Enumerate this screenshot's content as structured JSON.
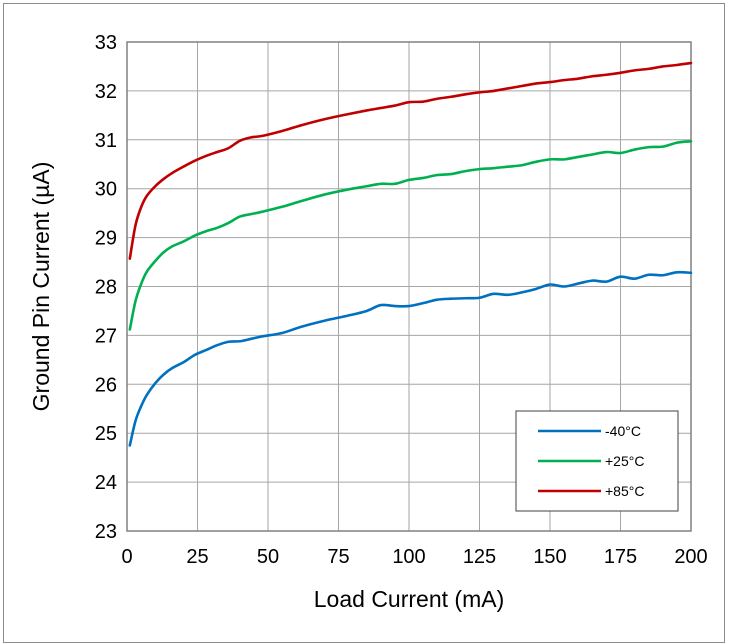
{
  "chart_data": {
    "type": "line",
    "title": "",
    "xlabel": "Load Current (mA)",
    "ylabel": "Ground Pin Current (µA)",
    "xlim": [
      0,
      200
    ],
    "ylim": [
      23,
      33
    ],
    "xticks": [
      0,
      25,
      50,
      75,
      100,
      125,
      150,
      175,
      200
    ],
    "yticks": [
      23,
      24,
      25,
      26,
      27,
      28,
      29,
      30,
      31,
      32,
      33
    ],
    "grid": true,
    "legend_position": "bottom-right",
    "series": [
      {
        "name": "-40°C",
        "color": "#0070c0",
        "x": [
          1,
          3,
          5,
          7,
          10,
          13,
          16,
          20,
          24,
          28,
          32,
          36,
          40,
          44,
          48,
          55,
          62,
          70,
          78,
          85,
          90,
          95,
          100,
          105,
          110,
          115,
          120,
          125,
          130,
          135,
          140,
          145,
          150,
          155,
          160,
          165,
          170,
          175,
          180,
          185,
          190,
          195,
          200
        ],
        "values": [
          24.75,
          25.25,
          25.55,
          25.78,
          26.02,
          26.2,
          26.33,
          26.45,
          26.6,
          26.7,
          26.8,
          26.87,
          26.88,
          26.93,
          26.98,
          27.05,
          27.18,
          27.3,
          27.4,
          27.5,
          27.62,
          27.6,
          27.6,
          27.66,
          27.73,
          27.75,
          27.76,
          27.77,
          27.85,
          27.83,
          27.88,
          27.95,
          28.04,
          28.0,
          28.06,
          28.12,
          28.1,
          28.2,
          28.16,
          28.24,
          28.23,
          28.29,
          28.28
        ]
      },
      {
        "name": "+25°C",
        "color": "#00b050",
        "x": [
          1,
          3,
          5,
          7,
          10,
          13,
          16,
          20,
          24,
          28,
          32,
          36,
          40,
          44,
          48,
          55,
          62,
          70,
          78,
          85,
          90,
          95,
          100,
          105,
          110,
          115,
          120,
          125,
          130,
          135,
          140,
          145,
          150,
          155,
          160,
          165,
          170,
          175,
          180,
          185,
          190,
          195,
          200
        ],
        "values": [
          27.12,
          27.7,
          28.05,
          28.3,
          28.52,
          28.7,
          28.82,
          28.92,
          29.04,
          29.13,
          29.2,
          29.3,
          29.43,
          29.48,
          29.53,
          29.63,
          29.75,
          29.88,
          29.98,
          30.05,
          30.1,
          30.1,
          30.18,
          30.22,
          30.28,
          30.3,
          30.36,
          30.4,
          30.42,
          30.45,
          30.48,
          30.55,
          30.6,
          30.6,
          30.65,
          30.7,
          30.75,
          30.73,
          30.8,
          30.85,
          30.86,
          30.94,
          30.97
        ]
      },
      {
        "name": "+85°C",
        "color": "#c00000",
        "x": [
          1,
          3,
          5,
          7,
          10,
          13,
          16,
          20,
          24,
          28,
          32,
          36,
          40,
          44,
          48,
          55,
          62,
          70,
          78,
          85,
          90,
          95,
          100,
          105,
          110,
          115,
          120,
          125,
          130,
          135,
          140,
          145,
          150,
          155,
          160,
          165,
          170,
          175,
          180,
          185,
          190,
          195,
          200
        ],
        "values": [
          28.57,
          29.25,
          29.62,
          29.85,
          30.05,
          30.2,
          30.32,
          30.45,
          30.57,
          30.67,
          30.75,
          30.83,
          30.98,
          31.05,
          31.08,
          31.18,
          31.3,
          31.42,
          31.52,
          31.6,
          31.65,
          31.7,
          31.77,
          31.78,
          31.84,
          31.88,
          31.93,
          31.97,
          32.0,
          32.05,
          32.1,
          32.15,
          32.18,
          32.22,
          32.25,
          32.3,
          32.33,
          32.37,
          32.42,
          32.45,
          32.5,
          32.53,
          32.57
        ]
      }
    ]
  }
}
